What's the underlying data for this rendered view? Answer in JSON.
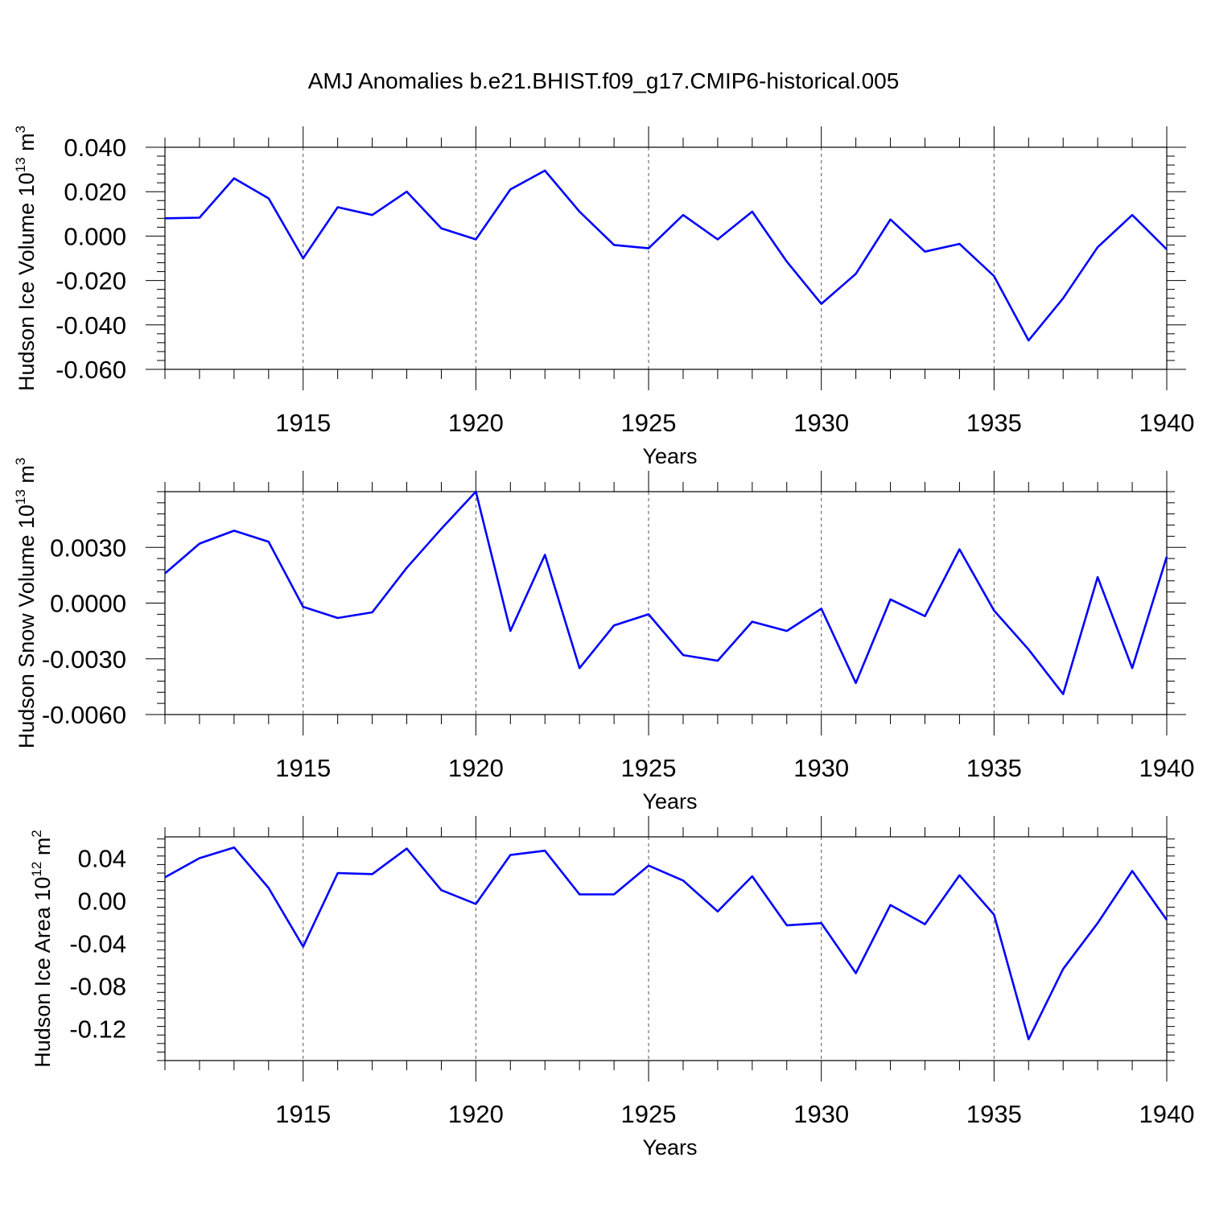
{
  "title": "AMJ Anomalies b.e21.BHIST.f09_g17.CMIP6-historical.005",
  "line_color": "#0000ff",
  "chart_data": [
    {
      "type": "line",
      "ylabel_base": "Hudson Ice Volume 10",
      "ylabel_exp": "13",
      "ylabel_unit": " m",
      "ylabel_unit_exp": "3",
      "xlabel": "Years",
      "xlim": [
        1911,
        1940
      ],
      "ylim": [
        -0.06,
        0.04
      ],
      "yticks": [
        "0.040",
        "0.020",
        "0.000",
        "-0.020",
        "-0.040",
        "-0.060"
      ],
      "yticks_values": [
        0.04,
        0.02,
        0.0,
        -0.02,
        -0.04,
        -0.06
      ],
      "xticks": [
        "1915",
        "1920",
        "1925",
        "1930",
        "1935",
        "1940"
      ],
      "grid_x": "dashed at labeled years",
      "series": [
        {
          "x": [
            1911,
            1912,
            1913,
            1914,
            1915,
            1916,
            1917,
            1918,
            1919,
            1920,
            1921,
            1922,
            1923,
            1924,
            1925,
            1926,
            1927,
            1928,
            1929,
            1930,
            1931,
            1932,
            1933,
            1934,
            1935,
            1936,
            1937,
            1938,
            1939,
            1940
          ],
          "values": [
            0.008,
            0.0083,
            0.026,
            0.017,
            -0.01,
            0.013,
            0.0095,
            0.02,
            0.0035,
            -0.0015,
            0.021,
            0.0295,
            0.011,
            -0.004,
            -0.0055,
            0.0095,
            -0.0015,
            0.011,
            -0.0115,
            -0.0305,
            -0.017,
            0.0075,
            -0.007,
            -0.0035,
            -0.018,
            -0.047,
            -0.028,
            -0.005,
            0.0095,
            -0.006
          ]
        }
      ]
    },
    {
      "type": "line",
      "ylabel_base": "Hudson Snow Volume 10",
      "ylabel_exp": "13",
      "ylabel_unit": " m",
      "ylabel_unit_exp": "3",
      "xlabel": "Years",
      "xlim": [
        1911,
        1940
      ],
      "ylim": [
        -0.006,
        0.006
      ],
      "yticks": [
        "0.0030",
        "0.0000",
        "-0.0030",
        "-0.0060"
      ],
      "yticks_values": [
        0.003,
        0.0,
        -0.003,
        -0.006
      ],
      "xticks": [
        "1915",
        "1920",
        "1925",
        "1930",
        "1935",
        "1940"
      ],
      "grid_x": "dashed at labeled years",
      "series": [
        {
          "x": [
            1911,
            1912,
            1913,
            1914,
            1915,
            1916,
            1917,
            1918,
            1919,
            1920,
            1921,
            1922,
            1923,
            1924,
            1925,
            1926,
            1927,
            1928,
            1929,
            1930,
            1931,
            1932,
            1933,
            1934,
            1935,
            1936,
            1937,
            1938,
            1939,
            1940
          ],
          "values": [
            0.0016,
            0.0032,
            0.0039,
            0.0033,
            -0.0002,
            -0.0008,
            -0.0005,
            0.0019,
            0.004,
            0.006,
            -0.0015,
            0.0026,
            -0.0035,
            -0.0012,
            -0.0006,
            -0.0028,
            -0.0031,
            -0.001,
            -0.0015,
            -0.0003,
            -0.0043,
            0.0002,
            -0.0007,
            0.0029,
            -0.0004,
            -0.0025,
            -0.0049,
            0.0014,
            -0.0035,
            0.0025
          ]
        }
      ]
    },
    {
      "type": "line",
      "ylabel_base": "Hudson Ice Area 10",
      "ylabel_exp": "12",
      "ylabel_unit": " m",
      "ylabel_unit_exp": "2",
      "xlabel": "Years",
      "xlim": [
        1911,
        1940
      ],
      "ylim": [
        -0.15,
        0.06
      ],
      "yticks": [
        "0.04",
        "0.00",
        "-0.04",
        "-0.08",
        "-0.12"
      ],
      "yticks_values": [
        0.04,
        0.0,
        -0.04,
        -0.08,
        -0.12
      ],
      "xticks": [
        "1915",
        "1920",
        "1925",
        "1930",
        "1935",
        "1940"
      ],
      "grid_x": "dashed at labeled years",
      "series": [
        {
          "x": [
            1911,
            1912,
            1913,
            1914,
            1915,
            1916,
            1917,
            1918,
            1919,
            1920,
            1921,
            1922,
            1923,
            1924,
            1925,
            1926,
            1927,
            1928,
            1929,
            1930,
            1931,
            1932,
            1933,
            1934,
            1935,
            1936,
            1937,
            1938,
            1939,
            1940
          ],
          "values": [
            0.022,
            0.04,
            0.05,
            0.012,
            -0.043,
            0.026,
            0.025,
            0.049,
            0.01,
            -0.003,
            0.043,
            0.047,
            0.006,
            0.006,
            0.033,
            0.019,
            -0.01,
            0.023,
            -0.023,
            -0.021,
            -0.068,
            -0.004,
            -0.022,
            0.024,
            -0.013,
            -0.13,
            -0.064,
            -0.021,
            0.028,
            -0.018
          ]
        }
      ]
    }
  ]
}
